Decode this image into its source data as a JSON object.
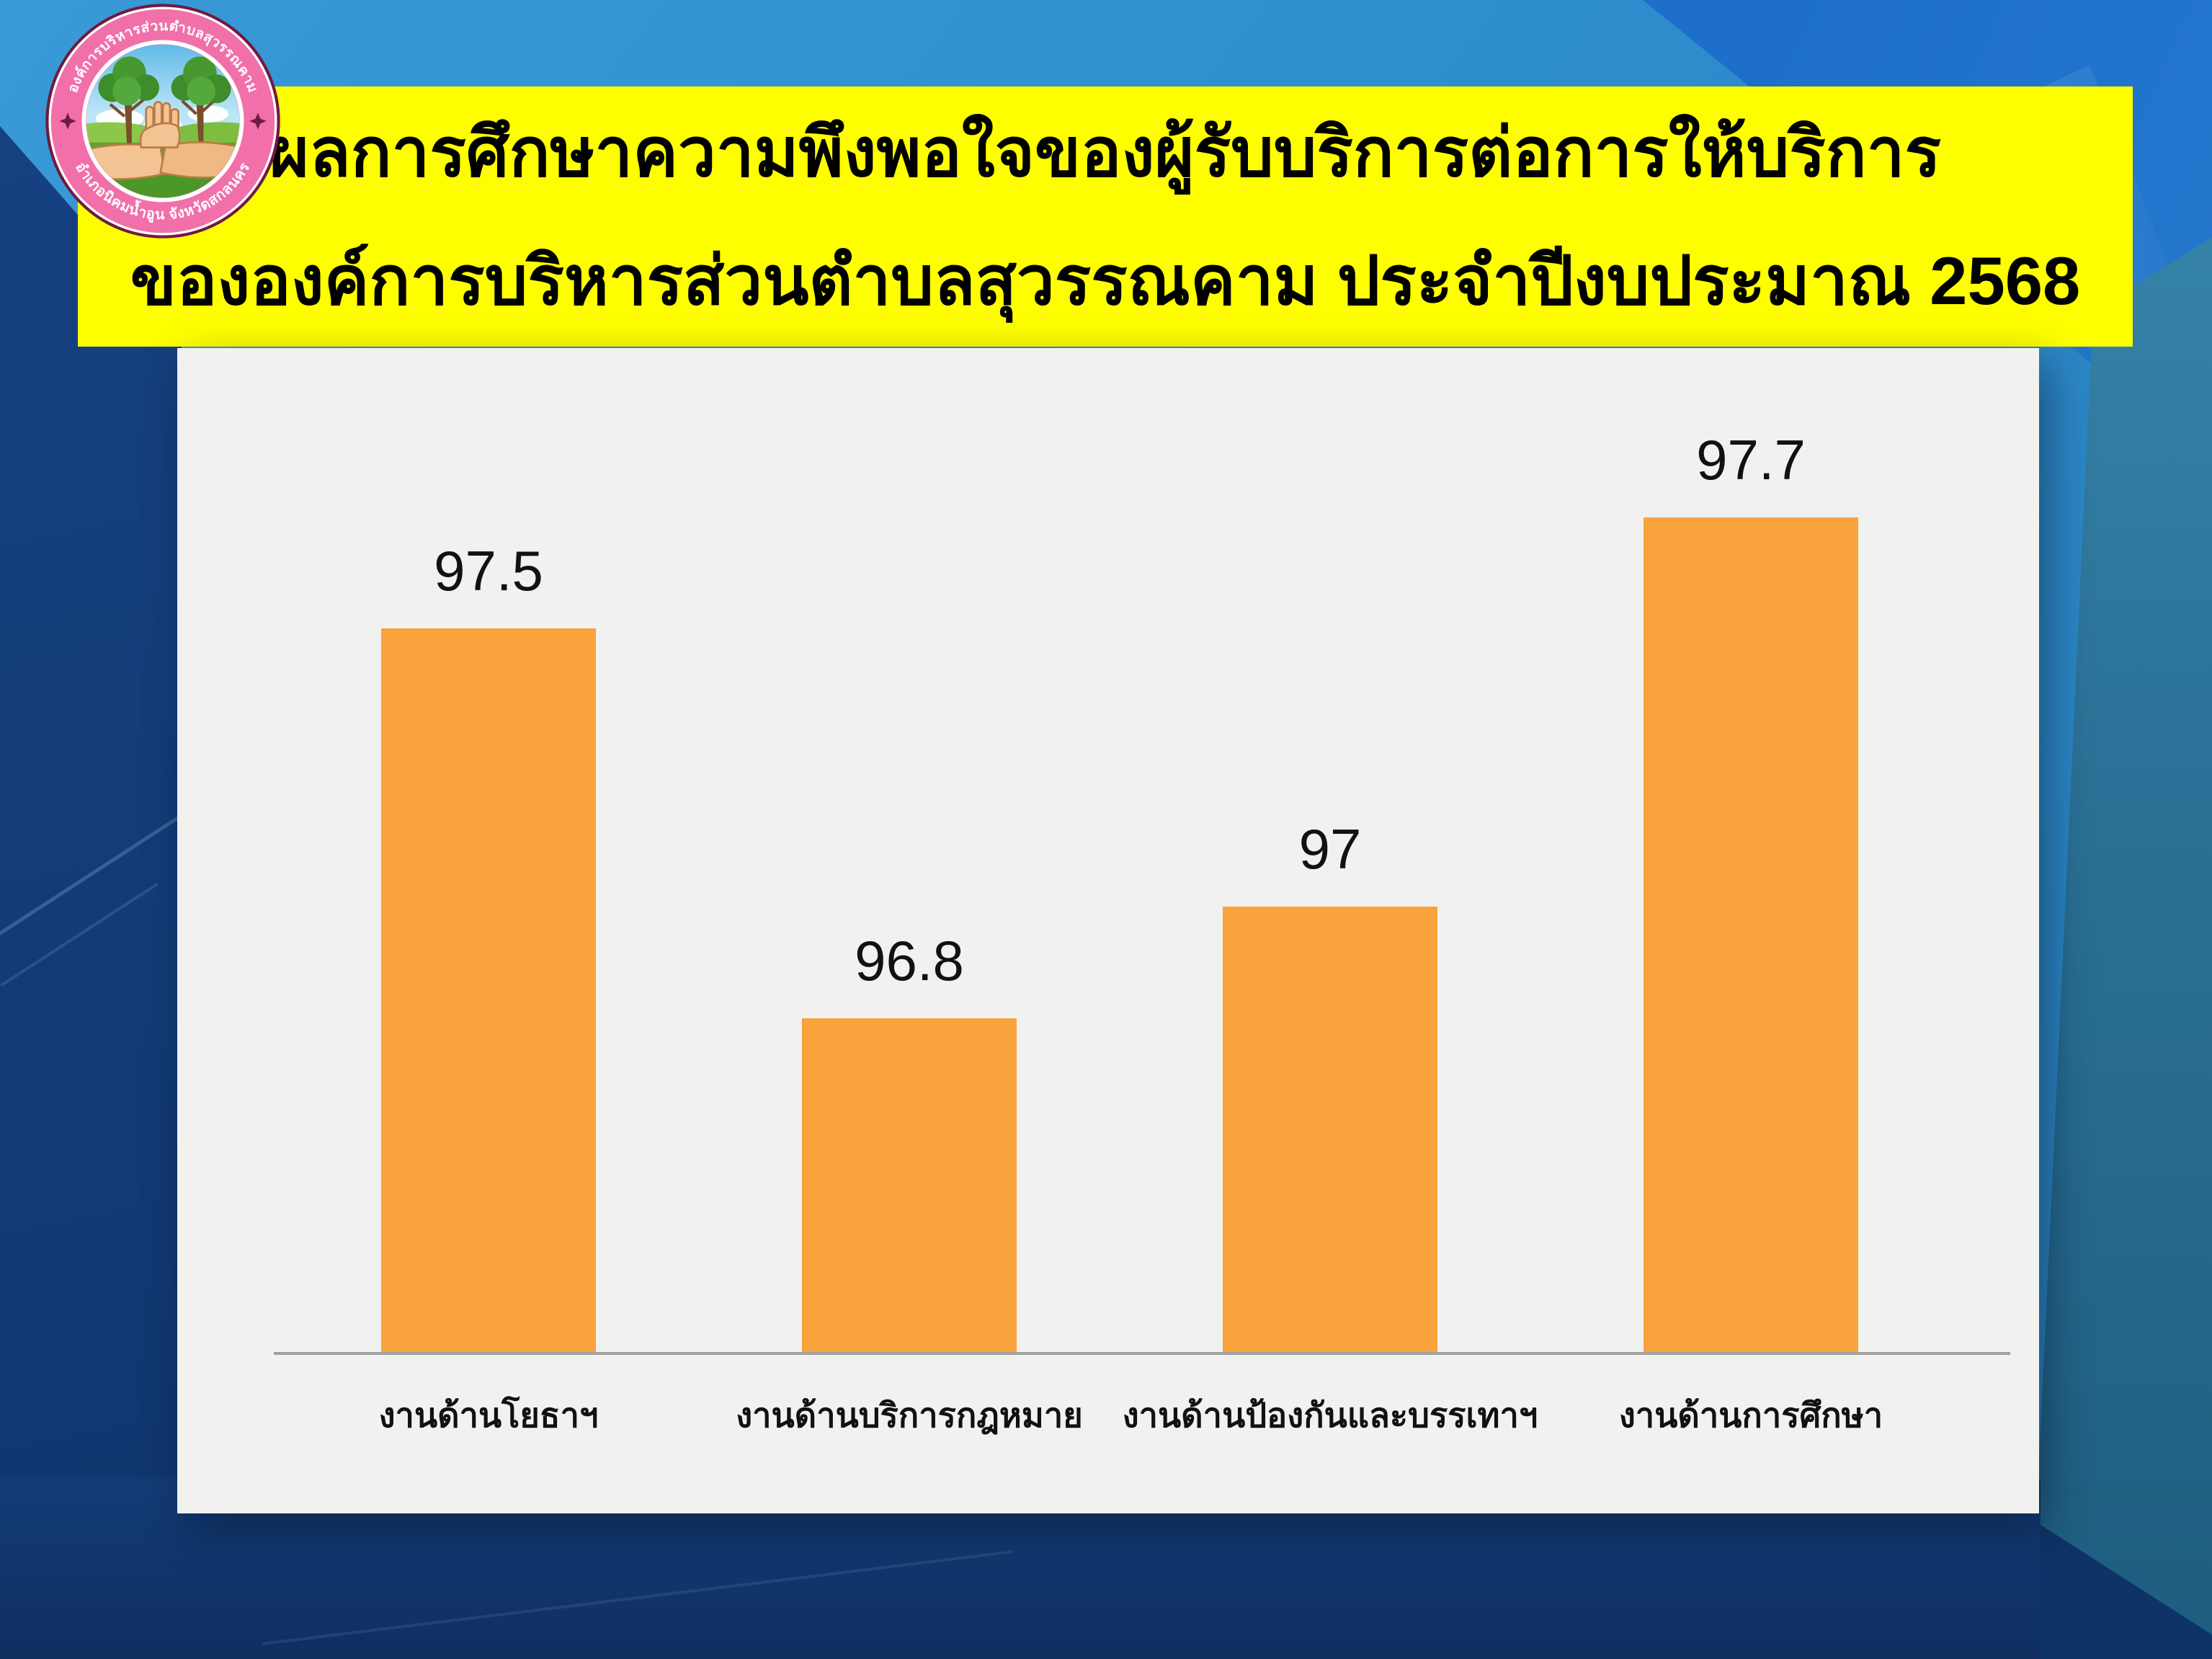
{
  "slide": {
    "title_line1": "ผลการศึกษาความพึงพอใจของผู้รับบริการต่อการให้บริการ",
    "title_line2": "ขององค์การบริหารส่วนตำบลสุวรรณคาม ประจำปีงบประมาณ 2568"
  },
  "logo": {
    "ring_text_top": "องค์การบริหารส่วนตำบลสุวรรณคาม",
    "ring_text_bottom": "อำเภอนิคมน้ำอูน จังหวัดสกลนคร"
  },
  "chart_data": {
    "type": "bar",
    "categories": [
      "งานด้านโยธาฯ",
      "งานด้านบริการกฎหมาย",
      "งานด้านป้องกันและบรรเทาฯ",
      "งานด้านการศึกษา"
    ],
    "values": [
      97.5,
      96.8,
      97,
      97.7
    ],
    "value_labels": [
      "97.5",
      "96.8",
      "97",
      "97.7"
    ],
    "title": "",
    "xlabel": "",
    "ylabel": "",
    "ylim": [
      96.2,
      97.9
    ],
    "grid": false,
    "legend": null,
    "bar_color": "#F8A33C",
    "panel_color": "#F1F1EF",
    "axis_color": "#A0A0A0",
    "value_label_color": "#111111",
    "category_label_color": "#111111"
  },
  "theme": {
    "banner_color": "#FEFE00",
    "title_color": "#000000",
    "bg_azure": "#3A9AD8",
    "bg_royal": "#1B69C4",
    "bg_teal": "#2B7398",
    "bg_navy": "#133C76",
    "logo_ring_pink": "#F170A9",
    "logo_ring_edge": "#701A3F",
    "logo_text_color": "#FFFFFF"
  }
}
